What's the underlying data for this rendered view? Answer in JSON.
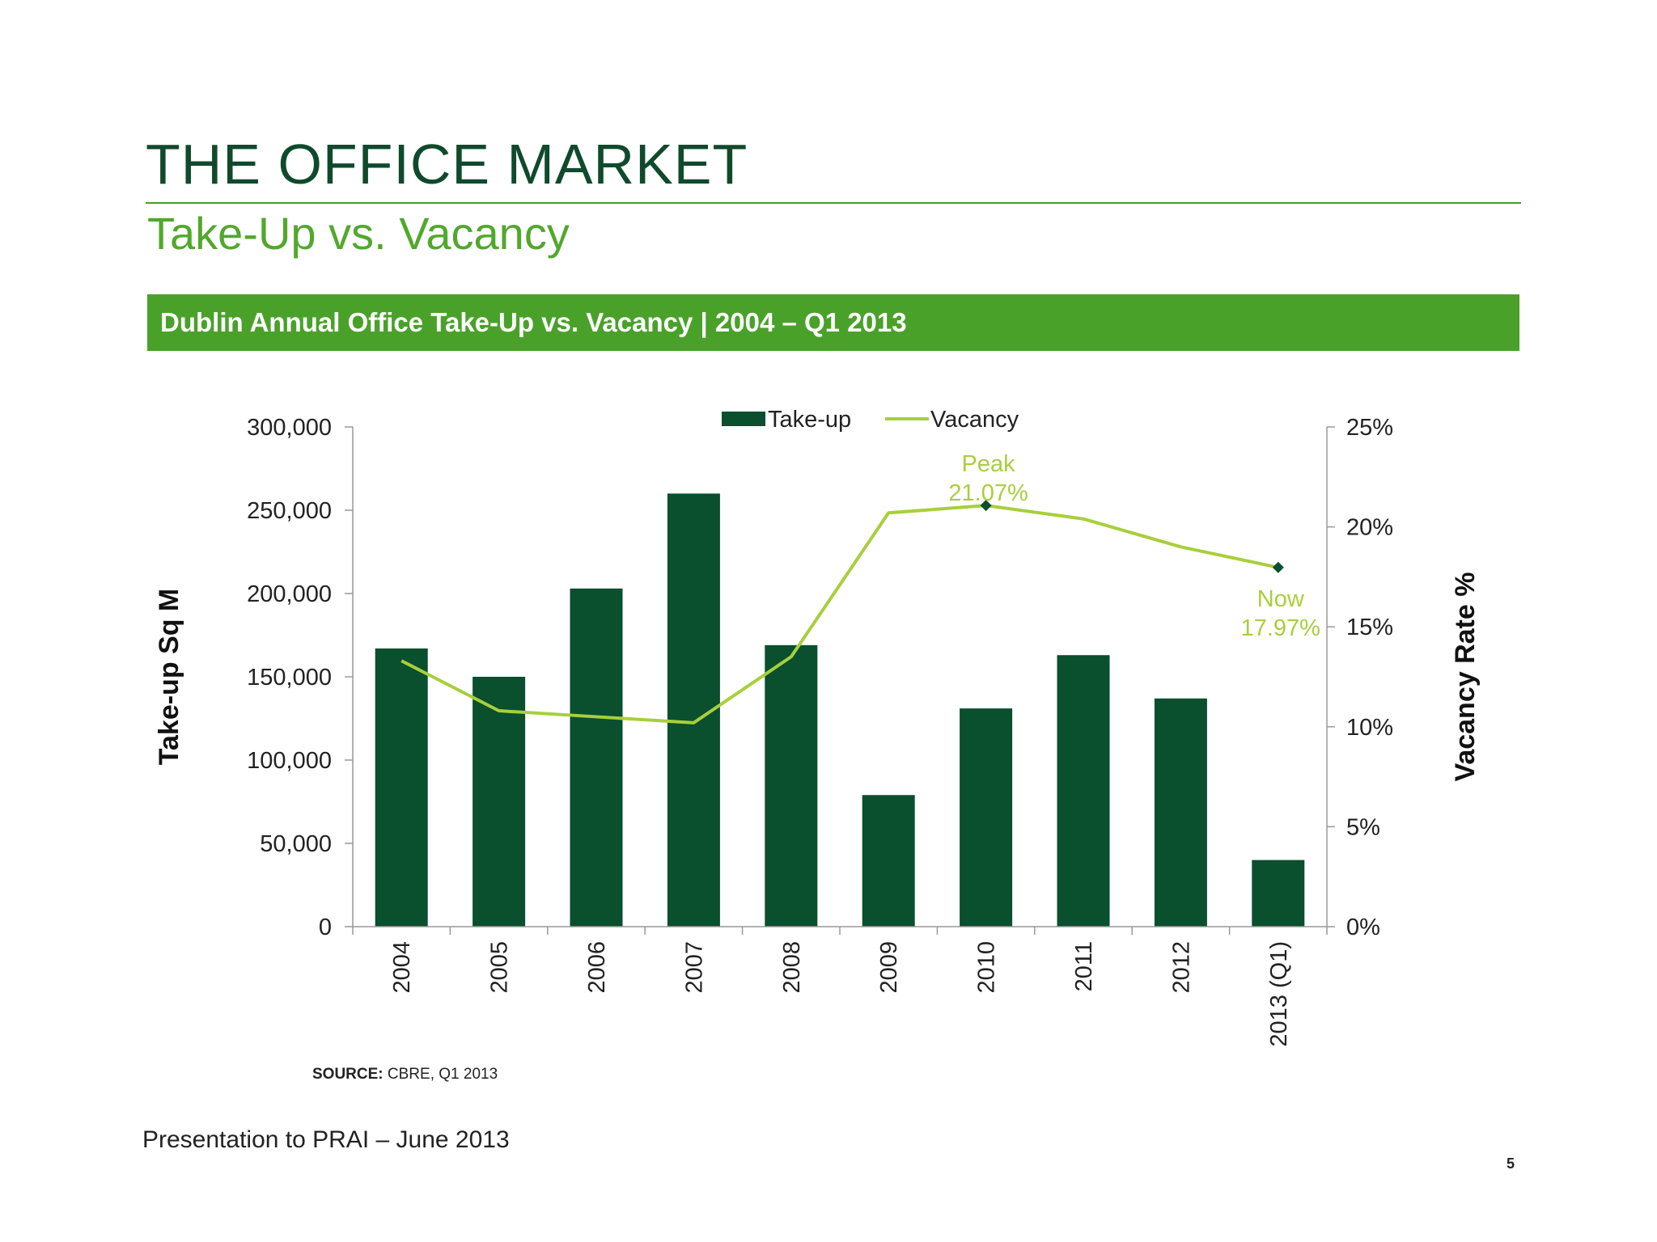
{
  "slide": {
    "title": "THE OFFICE MARKET",
    "subtitle": "Take-Up vs. Vacancy",
    "banner": "Dublin Annual Office  Take-Up vs. Vacancy | 2004 – Q1 2013",
    "source_label": "SOURCE:",
    "source_text": " CBRE, Q1 2013",
    "footer": "Presentation to PRAI – June 2013",
    "page_number": "5"
  },
  "colors": {
    "title": "#0f4a2c",
    "subtitle": "#52a82c",
    "banner": "#4aa12a",
    "bar": "#0a4f2e",
    "line": "#a8cf3c",
    "annotation": "#a8cf3c",
    "marker": "#0a4f2e"
  },
  "chart_data": {
    "type": "bar",
    "categories": [
      "2004",
      "2005",
      "2006",
      "2007",
      "2008",
      "2009",
      "2010",
      "2011",
      "2012",
      "2013 (Q1)"
    ],
    "series": [
      {
        "name": "Take-up",
        "type": "bar",
        "axis": "left",
        "values": [
          167000,
          150000,
          203000,
          260000,
          169000,
          79000,
          131000,
          163000,
          137000,
          40000
        ]
      },
      {
        "name": "Vacancy",
        "type": "line",
        "axis": "right",
        "values": [
          13.3,
          10.8,
          10.5,
          10.2,
          13.5,
          20.7,
          21.07,
          20.4,
          19.0,
          17.97
        ]
      }
    ],
    "ylabel": "Take-up Sq M",
    "y2label": "Vacancy Rate %",
    "ylim": [
      0,
      300000
    ],
    "y2lim": [
      0,
      25
    ],
    "yticks": [
      "0",
      "50,000",
      "100,000",
      "150,000",
      "200,000",
      "250,000",
      "300,000"
    ],
    "y2ticks": [
      "0%",
      "5%",
      "10%",
      "15%",
      "20%",
      "25%"
    ],
    "legend_position": "top-center",
    "grid": false,
    "annotations": [
      {
        "category_index": 6,
        "label": "Peak",
        "value_text": "21.07%"
      },
      {
        "category_index": 9,
        "label": "Now",
        "value_text": "17.97%"
      }
    ]
  }
}
